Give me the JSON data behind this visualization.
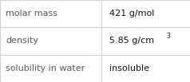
{
  "rows": [
    {
      "label": "molar mass",
      "value": "421 g/mol",
      "superscript": null
    },
    {
      "label": "density",
      "value": "5.85 g/cm",
      "superscript": "3"
    },
    {
      "label": "solubility in water",
      "value": "insoluble",
      "superscript": null
    }
  ],
  "bg_color": "#ffffff",
  "cell_bg": "#f9f9f9",
  "border_color": "#d0d0d0",
  "label_color": "#555555",
  "value_color": "#111111",
  "label_fontsize": 8.0,
  "value_fontsize": 8.0,
  "sup_fontsize": 5.6,
  "col_split": 0.535
}
